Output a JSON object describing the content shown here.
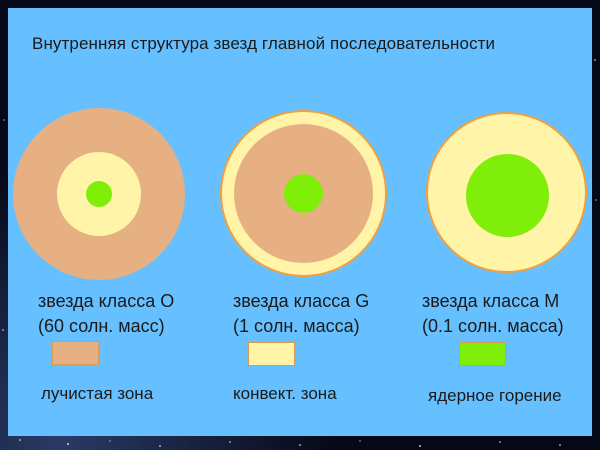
{
  "title": "Внутренняя структура звезд главной последовательности",
  "colors": {
    "background": "#66c0ff",
    "radiative_zone": "#e6b083",
    "convective_zone": "#fff4a8",
    "core": "#7fef0a",
    "outline": "#f0a040"
  },
  "stars": [
    {
      "class_label": "звезда класса O",
      "mass_label": "(60 солн. масс)",
      "layers": [
        "radiative_zone",
        "convective_zone",
        "core"
      ],
      "layer_fractions": [
        1.0,
        0.48,
        0.15
      ]
    },
    {
      "class_label": "звезда класса G",
      "mass_label": "(1 солн. масса)",
      "layers": [
        "convective_zone",
        "radiative_zone",
        "core"
      ],
      "layer_fractions": [
        1.0,
        0.82,
        0.25
      ]
    },
    {
      "class_label": "звезда класса M",
      "mass_label": "(0.1 солн. масса)",
      "layers": [
        "convective_zone",
        "core"
      ],
      "layer_fractions": [
        1.0,
        0.5
      ]
    }
  ],
  "legend": [
    {
      "label": "лучистая зона",
      "color_key": "radiative_zone"
    },
    {
      "label": "конвект. зона",
      "color_key": "convective_zone"
    },
    {
      "label": "ядерное горение",
      "color_key": "core"
    }
  ]
}
